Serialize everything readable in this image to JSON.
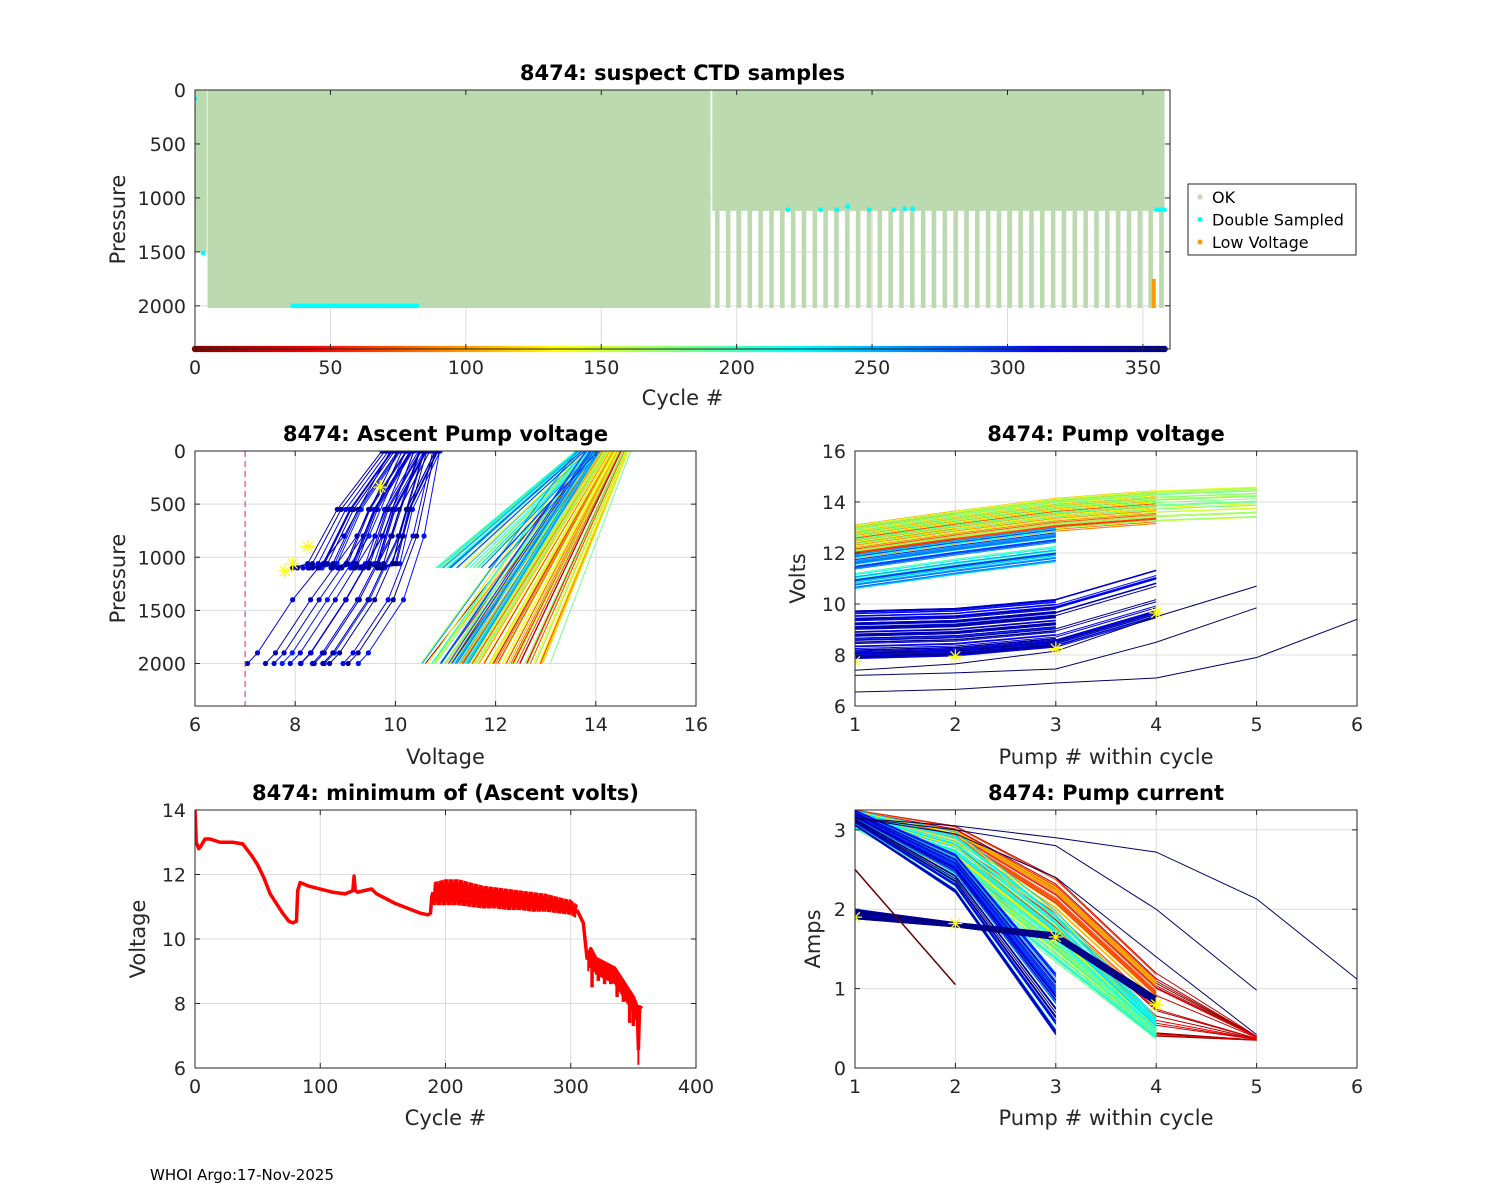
{
  "footer": "WHOI Argo:17-Nov-2025",
  "chart_data": [
    {
      "id": "ctd",
      "type": "scatter",
      "title": "8474: suspect CTD samples",
      "xlabel": "Cycle #",
      "ylabel": "Pressure",
      "xlim": [
        0,
        360
      ],
      "ylim": [
        2400,
        0
      ],
      "y_reversed": true,
      "xticks": [
        0,
        50,
        100,
        150,
        200,
        250,
        300,
        350
      ],
      "yticks": [
        0,
        500,
        1000,
        1500,
        2000
      ],
      "grid": true,
      "legend": {
        "placement": "outside-right",
        "entries": [
          {
            "label": "OK",
            "color": "#bcdab0"
          },
          {
            "label": "Double Sampled",
            "color": "#00ffff"
          },
          {
            "label": "Low Voltage",
            "color": "#ff9a00"
          }
        ]
      },
      "ok_profiles": {
        "full_depth_cycles": [
          5,
          190
        ],
        "full_depth_max_pressure": 2020,
        "early_cycles": [
          0,
          4
        ],
        "early_max_pressure": 1500,
        "alternating_cycles": [
          191,
          358
        ],
        "alternating_shallow_max_pressure": 1120,
        "alternating_deep_max_pressure": 2020
      },
      "double_sampled": [
        {
          "cycle": 0,
          "pressure": 80
        },
        {
          "cycle": 3,
          "pressure": 1510
        },
        {
          "cycle_range": [
            36,
            82
          ],
          "pressure": 2000
        },
        {
          "cycle": 219,
          "pressure": 1110
        },
        {
          "cycle": 231,
          "pressure": 1110
        },
        {
          "cycle": 237,
          "pressure": 1110
        },
        {
          "cycle": 241,
          "pressure": 1080
        },
        {
          "cycle": 249,
          "pressure": 1110
        },
        {
          "cycle": 258,
          "pressure": 1110
        },
        {
          "cycle": 262,
          "pressure": 1100
        },
        {
          "cycle": 265,
          "pressure": 1100
        },
        {
          "cycle_range": [
            355,
            358
          ],
          "pressure": 1110
        }
      ],
      "low_voltage": [
        {
          "cycle": 354,
          "pressure_range": [
            1750,
            2020
          ]
        }
      ],
      "cycle_colorbar": {
        "range": [
          0,
          358
        ],
        "colormap": "jet-reversed"
      }
    },
    {
      "id": "ascent",
      "type": "line",
      "title": "8474: Ascent Pump voltage",
      "xlabel": "Voltage",
      "ylabel": "Pressure",
      "xlim": [
        6,
        16
      ],
      "ylim": [
        2400,
        0
      ],
      "y_reversed": true,
      "xticks": [
        6,
        8,
        10,
        12,
        14,
        16
      ],
      "yticks": [
        0,
        500,
        1000,
        1500,
        2000
      ],
      "grid": true,
      "threshold_line": {
        "x": 7,
        "color": "#d42a4b",
        "style": "dashed"
      },
      "groups": [
        {
          "cycles": "0-190",
          "color_scale": "early",
          "v_at_2000": [
            10.6,
            13.1
          ],
          "v_at_0": [
            13.9,
            14.7
          ]
        },
        {
          "cycles": "190-300",
          "color_scale": "mid",
          "v_at_2000": [
            10.5,
            11.5
          ],
          "v_at_0": [
            13.6,
            14.1
          ]
        },
        {
          "cycles": "300-358",
          "color_scale": "late",
          "v_at_2000": [
            6.6,
            9.3
          ],
          "v_at_0": [
            9.7,
            10.9
          ]
        }
      ],
      "suspect_markers": [
        {
          "v": 7.8,
          "p": 1130
        },
        {
          "v": 7.95,
          "p": 1060
        },
        {
          "v": 8.25,
          "p": 900
        },
        {
          "v": 9.7,
          "p": 340
        }
      ]
    },
    {
      "id": "pumpv",
      "type": "line",
      "title": "8474: Pump voltage",
      "xlabel": "Pump # within cycle",
      "ylabel": "Volts",
      "xlim": [
        1,
        6
      ],
      "ylim": [
        6,
        16
      ],
      "xticks": [
        1,
        2,
        3,
        4,
        5,
        6
      ],
      "yticks": [
        6,
        8,
        10,
        12,
        14,
        16
      ],
      "grid": true,
      "highlight_lines": [
        {
          "x": [
            1,
            2,
            3,
            4,
            5,
            6
          ],
          "y": [
            6.55,
            6.65,
            6.9,
            7.1,
            7.9,
            9.4
          ]
        },
        {
          "x": [
            1,
            2,
            3,
            4,
            5
          ],
          "y": [
            7.2,
            7.3,
            7.45,
            8.5,
            9.85
          ]
        },
        {
          "x": [
            1,
            2,
            3,
            4,
            5
          ],
          "y": [
            7.4,
            7.65,
            8.15,
            9.5,
            10.7
          ]
        }
      ],
      "suspect_markers": [
        {
          "x": 1,
          "y": 7.75
        },
        {
          "x": 2,
          "y": 7.95
        },
        {
          "x": 3,
          "y": 8.25
        },
        {
          "x": 4,
          "y": 9.65
        }
      ]
    },
    {
      "id": "minv",
      "type": "line",
      "title": "8474: minimum of (Ascent volts)",
      "xlabel": "Cycle #",
      "ylabel": "Voltage",
      "xlim": [
        0,
        400
      ],
      "ylim": [
        6,
        14
      ],
      "xticks": [
        0,
        100,
        200,
        300,
        400
      ],
      "yticks": [
        6,
        8,
        10,
        12,
        14
      ],
      "grid": true,
      "color": "#ff0000",
      "series": [
        {
          "name": "min ascent volts",
          "x": [
            0,
            1,
            3,
            5,
            8,
            12,
            20,
            30,
            38,
            45,
            50,
            55,
            60,
            65,
            70,
            75,
            78,
            81,
            82,
            84,
            90,
            100,
            110,
            120,
            126,
            127,
            128,
            130,
            135,
            141,
            145,
            150,
            160,
            170,
            180,
            186,
            188,
            189,
            190
          ],
          "y": [
            14.0,
            13.0,
            12.8,
            12.9,
            13.1,
            13.1,
            13.0,
            13.0,
            12.95,
            12.6,
            12.3,
            11.9,
            11.4,
            11.1,
            10.8,
            10.55,
            10.5,
            10.55,
            11.5,
            11.75,
            11.65,
            11.55,
            11.45,
            11.4,
            11.5,
            11.95,
            11.5,
            11.45,
            11.5,
            11.55,
            11.4,
            11.3,
            11.1,
            10.95,
            10.8,
            10.75,
            10.8,
            11.3,
            11.45
          ]
        },
        {
          "name": "alternating envelope upper",
          "x": [
            190,
            200,
            210,
            220,
            230,
            240,
            250,
            260,
            270,
            280,
            290,
            300,
            305
          ],
          "y": [
            11.7,
            11.8,
            11.8,
            11.7,
            11.6,
            11.55,
            11.5,
            11.45,
            11.4,
            11.35,
            11.25,
            11.15,
            11.0
          ]
        },
        {
          "name": "alternating envelope lower",
          "x": [
            190,
            200,
            210,
            220,
            230,
            240,
            250,
            260,
            270,
            280,
            290,
            300,
            305
          ],
          "y": [
            11.1,
            11.1,
            11.1,
            11.05,
            11.0,
            11.0,
            10.95,
            10.95,
            10.9,
            10.9,
            10.85,
            10.8,
            10.7
          ]
        },
        {
          "name": "decline",
          "x": [
            305,
            310,
            313,
            316,
            320,
            325,
            330,
            335,
            340,
            345,
            350,
            353,
            354,
            355,
            357
          ],
          "y": [
            10.9,
            10.5,
            9.4,
            9.7,
            9.4,
            9.3,
            9.2,
            9.1,
            8.8,
            8.5,
            8.2,
            7.9,
            6.6,
            7.9,
            7.85
          ]
        },
        {
          "name": "decline spikes",
          "x": [
            317,
            322,
            327,
            332,
            337,
            342,
            347,
            350,
            354
          ],
          "y": [
            8.5,
            8.7,
            8.6,
            8.6,
            8.2,
            8.05,
            7.4,
            7.3,
            6.55
          ]
        }
      ]
    },
    {
      "id": "pumpc",
      "type": "line",
      "title": "8474: Pump current",
      "xlabel": "Pump # within cycle",
      "ylabel": "Amps",
      "xlim": [
        1,
        6
      ],
      "ylim": [
        0,
        3.25
      ],
      "xticks": [
        1,
        2,
        3,
        4,
        5,
        6
      ],
      "yticks": [
        0,
        1,
        2,
        3
      ],
      "grid": true,
      "highlight_lines": [
        {
          "x": [
            1,
            2,
            3,
            4,
            5,
            6
          ],
          "y": [
            3.15,
            3.05,
            2.9,
            2.72,
            2.13,
            1.12
          ]
        },
        {
          "x": [
            1,
            2,
            3,
            4,
            5
          ],
          "y": [
            3.15,
            3.0,
            2.8,
            2.0,
            0.98
          ]
        },
        {
          "x": [
            1,
            2,
            3,
            4,
            5
          ],
          "y": [
            3.15,
            2.95,
            2.4,
            1.4,
            0.42
          ]
        }
      ],
      "suspect_markers": [
        {
          "x": 1,
          "y": 1.9
        },
        {
          "x": 2,
          "y": 1.82
        },
        {
          "x": 3,
          "y": 1.65
        },
        {
          "x": 4,
          "y": 0.8
        }
      ]
    }
  ]
}
